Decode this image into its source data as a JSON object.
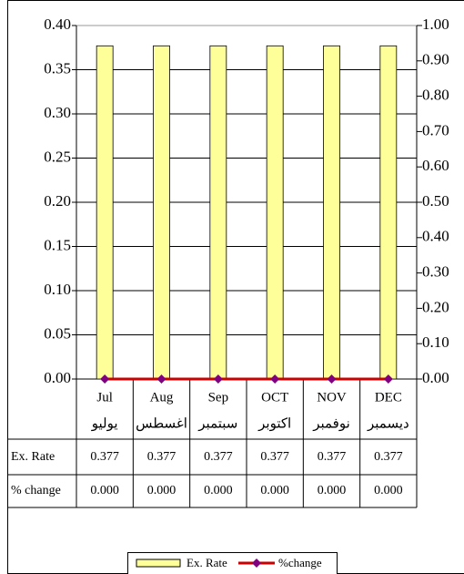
{
  "chart_data": {
    "type": "bar",
    "categories": [
      "Jul",
      "Aug",
      "Sep",
      "OCT",
      "NOV",
      "DEC"
    ],
    "categories_ar": [
      "يوليو",
      "اغسطس",
      "سبتمبر",
      "اكتوبر",
      "نوفمبر",
      "ديسمبر"
    ],
    "table_row_labels": [
      "Ex. Rate",
      "% change"
    ],
    "series": [
      {
        "name": "Ex. Rate",
        "type": "bar",
        "color": "#ffff99",
        "values": [
          0.377,
          0.377,
          0.377,
          0.377,
          0.377,
          0.377
        ],
        "value_labels": [
          "0.377",
          "0.377",
          "0.377",
          "0.377",
          "0.377",
          "0.377"
        ]
      },
      {
        "name": "%change",
        "type": "line",
        "axis": "y2",
        "color": "#cc0000",
        "marker_color": "#800080",
        "values": [
          0,
          0,
          0,
          0,
          0,
          0
        ],
        "value_labels": [
          "0.000",
          "0.000",
          "0.000",
          "0.000",
          "0.000",
          "0.000"
        ]
      }
    ],
    "ylim": [
      0,
      0.4
    ],
    "yticks": [
      {
        "value": 0,
        "label": "0.00"
      },
      0.05,
      {
        "value": 0.1,
        "label": "0.10"
      },
      0.15,
      {
        "value": 0.2,
        "label": "0.20"
      },
      0.25,
      {
        "value": 0.3,
        "label": "0.30"
      },
      0.35,
      {
        "value": 0.4,
        "label": "0.40"
      }
    ],
    "y2lim": [
      0,
      1
    ],
    "y2ticks": [
      {
        "value": 0,
        "label": "0.00"
      },
      {
        "value": 0.1,
        "label": "0.10"
      },
      {
        "value": 0.2,
        "label": "0.20"
      },
      {
        "value": 0.3,
        "label": "0.30"
      },
      {
        "value": 0.4,
        "label": "0.40"
      },
      {
        "value": 0.5,
        "label": "0.50"
      },
      {
        "value": 0.6,
        "label": "0.60"
      },
      {
        "value": 0.7,
        "label": "0.70"
      },
      {
        "value": 0.8,
        "label": "0.80"
      },
      {
        "value": 0.9,
        "label": "0.90"
      },
      {
        "value": 1,
        "label": "1.00"
      }
    ],
    "grid": true,
    "legend": "bottom"
  }
}
